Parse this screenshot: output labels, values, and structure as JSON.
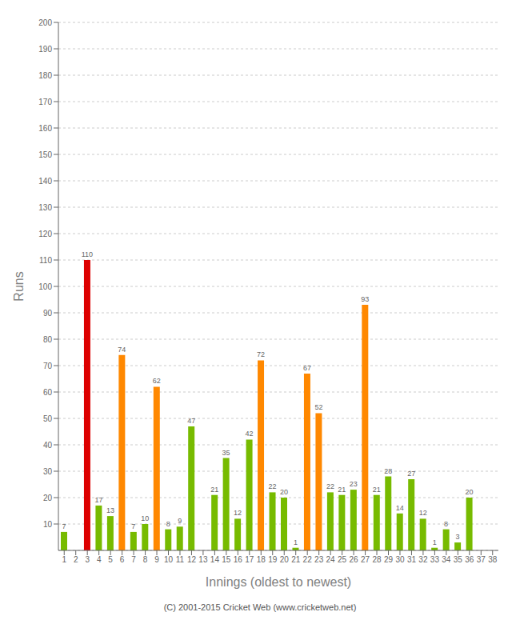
{
  "chart_data": {
    "type": "bar",
    "xlabel": "Innings (oldest to newest)",
    "ylabel": "Runs",
    "categories": [
      "1",
      "2",
      "3",
      "4",
      "5",
      "6",
      "7",
      "8",
      "9",
      "10",
      "11",
      "12",
      "13",
      "14",
      "15",
      "16",
      "17",
      "18",
      "19",
      "20",
      "21",
      "22",
      "23",
      "24",
      "25",
      "26",
      "27",
      "28",
      "29",
      "30",
      "31",
      "32",
      "33",
      "34",
      "35",
      "36",
      "37",
      "38"
    ],
    "values": [
      7,
      0,
      110,
      17,
      13,
      74,
      7,
      10,
      62,
      8,
      9,
      47,
      0,
      21,
      35,
      12,
      42,
      72,
      22,
      20,
      1,
      67,
      52,
      22,
      21,
      23,
      93,
      21,
      28,
      14,
      27,
      12,
      1,
      8,
      3,
      20,
      null,
      null
    ],
    "colors": [
      "#77bb00",
      "#77bb00",
      "#dd0000",
      "#77bb00",
      "#77bb00",
      "#ff8800",
      "#77bb00",
      "#77bb00",
      "#ff8800",
      "#77bb00",
      "#77bb00",
      "#77bb00",
      "#77bb00",
      "#77bb00",
      "#77bb00",
      "#77bb00",
      "#77bb00",
      "#ff8800",
      "#77bb00",
      "#77bb00",
      "#77bb00",
      "#ff8800",
      "#ff8800",
      "#77bb00",
      "#77bb00",
      "#77bb00",
      "#ff8800",
      "#77bb00",
      "#77bb00",
      "#77bb00",
      "#77bb00",
      "#77bb00",
      "#77bb00",
      "#77bb00",
      "#77bb00",
      "#77bb00",
      "#77bb00",
      "#77bb00"
    ],
    "ylim": [
      0,
      200
    ],
    "yticks": [
      10,
      20,
      30,
      40,
      50,
      60,
      70,
      80,
      90,
      100,
      110,
      120,
      130,
      140,
      150,
      160,
      170,
      180,
      190,
      200
    ],
    "grid": true,
    "data_labels": true,
    "annotations": [
      "(C) 2001-2015 Cricket Web (www.cricketweb.net)"
    ]
  }
}
